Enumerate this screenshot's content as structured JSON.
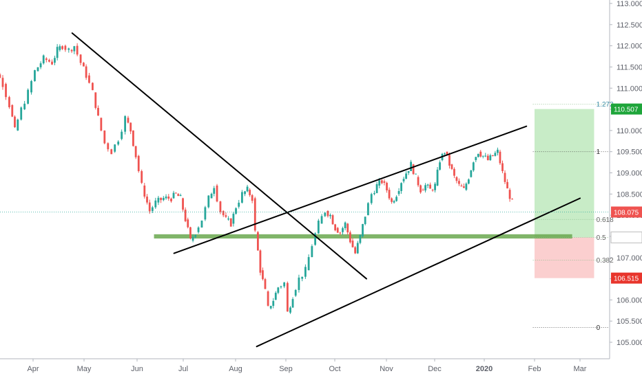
{
  "chart_data": {
    "type": "candlestick",
    "title": "",
    "xlabel": "",
    "ylabel": "",
    "ylim": [
      104.8,
      113.1
    ],
    "grid": false,
    "x_ticks": [
      "Apr",
      "May",
      "Jun",
      "Jul",
      "Aug",
      "Sep",
      "Oct",
      "Nov",
      "Dec",
      "2020",
      "Feb",
      "Mar"
    ],
    "x_tick_dates": [
      "2019-04-01",
      "2019-05-01",
      "2019-06-01",
      "2019-07-01",
      "2019-08-01",
      "2019-09-01",
      "2019-10-01",
      "2019-11-01",
      "2019-12-01",
      "2020-01-01",
      "2020-02-01",
      "2020-03-01"
    ],
    "y_ticks": [
      "113.000",
      "112.500",
      "112.000",
      "111.500",
      "111.000",
      "110.500",
      "110.000",
      "109.500",
      "109.000",
      "108.500",
      "108.000",
      "107.500",
      "107.000",
      "106.500",
      "106.000",
      "105.500",
      "105.000"
    ],
    "colors": {
      "up": "#26a69a",
      "down": "#ef5350",
      "trendline": "#000000",
      "support_zone": "#6aa84f",
      "target_zone": "#c8ecc7",
      "stop_zone": "#fbcfcf",
      "price_line": "#26a69a",
      "axis_text": "#5d6069"
    },
    "series": [
      {
        "kind": "ohlc",
        "start_date": "2019-03-01",
        "close_points": [
          [
            "2019-03-01",
            111.3
          ],
          [
            "2019-03-06",
            111.6
          ],
          [
            "2019-03-10",
            111.5
          ],
          [
            "2019-03-15",
            111.1
          ],
          [
            "2019-03-19",
            110.6
          ],
          [
            "2019-03-22",
            110.0
          ],
          [
            "2019-03-26",
            110.5
          ],
          [
            "2019-03-30",
            110.9
          ],
          [
            "2019-04-03",
            111.4
          ],
          [
            "2019-04-08",
            111.7
          ],
          [
            "2019-04-13",
            111.6
          ],
          [
            "2019-04-16",
            111.9
          ],
          [
            "2019-04-19",
            112.0
          ],
          [
            "2019-04-23",
            111.9
          ],
          [
            "2019-04-26",
            112.0
          ],
          [
            "2019-04-30",
            111.6
          ],
          [
            "2019-05-03",
            111.3
          ],
          [
            "2019-05-07",
            110.9
          ],
          [
            "2019-05-10",
            110.3
          ],
          [
            "2019-05-14",
            109.7
          ],
          [
            "2019-05-18",
            109.5
          ],
          [
            "2019-05-22",
            109.8
          ],
          [
            "2019-05-26",
            110.3
          ],
          [
            "2019-05-29",
            110.0
          ],
          [
            "2019-06-01",
            109.4
          ],
          [
            "2019-06-05",
            108.7
          ],
          [
            "2019-06-10",
            108.1
          ],
          [
            "2019-06-14",
            108.3
          ],
          [
            "2019-06-19",
            108.4
          ],
          [
            "2019-06-24",
            108.4
          ],
          [
            "2019-06-27",
            108.5
          ],
          [
            "2019-06-30",
            108.4
          ],
          [
            "2019-07-03",
            107.9
          ],
          [
            "2019-07-06",
            107.4
          ],
          [
            "2019-07-09",
            107.6
          ],
          [
            "2019-07-13",
            107.9
          ],
          [
            "2019-07-17",
            108.4
          ],
          [
            "2019-07-20",
            108.7
          ],
          [
            "2019-07-24",
            108.1
          ],
          [
            "2019-07-27",
            107.9
          ],
          [
            "2019-07-30",
            107.8
          ],
          [
            "2019-08-02",
            108.2
          ],
          [
            "2019-08-06",
            108.5
          ],
          [
            "2019-08-09",
            108.6
          ],
          [
            "2019-08-12",
            108.4
          ],
          [
            "2019-08-14",
            107.6
          ],
          [
            "2019-08-17",
            106.7
          ],
          [
            "2019-08-20",
            106.2
          ],
          [
            "2019-08-22",
            105.8
          ],
          [
            "2019-08-25",
            106.0
          ],
          [
            "2019-08-28",
            106.3
          ],
          [
            "2019-09-01",
            106.4
          ],
          [
            "2019-09-03",
            105.7
          ],
          [
            "2019-09-06",
            106.1
          ],
          [
            "2019-09-10",
            106.5
          ],
          [
            "2019-09-14",
            106.7
          ],
          [
            "2019-09-18",
            107.3
          ],
          [
            "2019-09-22",
            107.8
          ],
          [
            "2019-09-26",
            108.1
          ],
          [
            "2019-09-29",
            108.0
          ],
          [
            "2019-10-02",
            107.7
          ],
          [
            "2019-10-05",
            107.6
          ],
          [
            "2019-10-08",
            107.8
          ],
          [
            "2019-10-11",
            107.4
          ],
          [
            "2019-10-14",
            107.1
          ],
          [
            "2019-10-17",
            107.5
          ],
          [
            "2019-10-20",
            108.0
          ],
          [
            "2019-10-24",
            108.5
          ],
          [
            "2019-10-27",
            108.7
          ],
          [
            "2019-10-30",
            108.8
          ],
          [
            "2019-11-02",
            108.6
          ],
          [
            "2019-11-05",
            108.3
          ],
          [
            "2019-11-08",
            108.5
          ],
          [
            "2019-11-11",
            108.8
          ],
          [
            "2019-11-14",
            109.0
          ],
          [
            "2019-11-17",
            109.2
          ],
          [
            "2019-11-20",
            108.9
          ],
          [
            "2019-11-23",
            108.6
          ],
          [
            "2019-11-26",
            108.7
          ],
          [
            "2019-11-29",
            108.6
          ],
          [
            "2019-12-02",
            108.7
          ],
          [
            "2019-12-05",
            109.3
          ],
          [
            "2019-12-08",
            109.5
          ],
          [
            "2019-12-11",
            109.2
          ],
          [
            "2019-12-14",
            108.9
          ],
          [
            "2019-12-17",
            108.7
          ],
          [
            "2019-12-20",
            108.6
          ],
          [
            "2019-12-23",
            108.9
          ],
          [
            "2019-12-26",
            109.3
          ],
          [
            "2019-12-29",
            109.5
          ],
          [
            "2020-01-01",
            109.4
          ],
          [
            "2020-01-04",
            109.3
          ],
          [
            "2020-01-07",
            109.4
          ],
          [
            "2020-01-10",
            109.5
          ],
          [
            "2020-01-13",
            109.0
          ],
          [
            "2020-01-16",
            108.6
          ],
          [
            "2020-01-19",
            108.3
          ]
        ]
      }
    ],
    "trendlines": [
      {
        "name": "",
        "from": [
          "2019-04-24",
          112.3
        ],
        "to": [
          "2019-10-20",
          106.5
        ]
      },
      {
        "name": "",
        "from": [
          "2019-06-25",
          107.1
        ],
        "to": [
          "2020-01-27",
          110.1
        ]
      },
      {
        "name": "",
        "from": [
          "2019-08-14",
          104.9
        ],
        "to": [
          "2020-03-01",
          108.4
        ]
      }
    ],
    "support_zone": {
      "from": "2019-06-12",
      "to": "2020-02-25",
      "y": [
        107.45,
        107.55
      ]
    },
    "target_zone": {
      "from": "2020-02-01",
      "to": "2020-03-10",
      "y": [
        107.476,
        110.507
      ]
    },
    "stop_zone": {
      "from": "2020-02-01",
      "to": "2020-03-10",
      "y": [
        106.515,
        107.476
      ]
    },
    "current_price": 108.075,
    "fib_levels": [
      {
        "label": "1.272",
        "value": 110.62
      },
      {
        "label": "1",
        "value": 109.5
      },
      {
        "label": "0.618",
        "value": 107.9
      },
      {
        "label": "0.5",
        "value": 107.476
      },
      {
        "label": "0.382",
        "value": 106.94
      },
      {
        "label": "0",
        "value": 105.35
      }
    ],
    "price_badges": [
      {
        "label": "110.507",
        "value": 110.507,
        "color": "#1ea53a"
      },
      {
        "label": "108.075",
        "value": 108.075,
        "color": "#ef5350"
      },
      {
        "label": "107.476",
        "value": 107.476,
        "color": "#ffffff",
        "text_color": "#333333",
        "border": "#bbbbbb"
      },
      {
        "label": "106.515",
        "value": 106.515,
        "color": "#e8352c"
      }
    ]
  }
}
